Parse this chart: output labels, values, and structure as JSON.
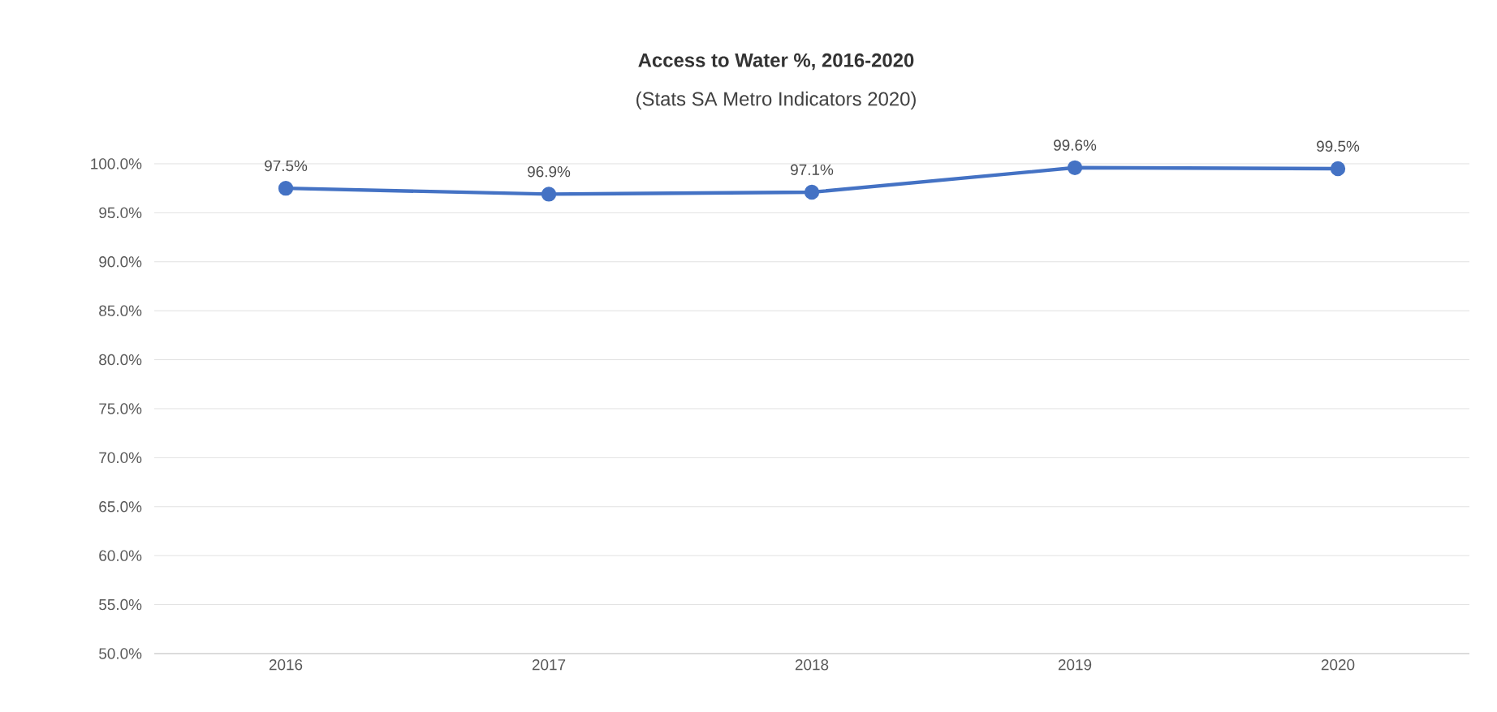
{
  "chart_data": {
    "type": "line",
    "title": "Access to Water %, 2016-2020",
    "subtitle": "(Stats SA Metro Indicators 2020)",
    "categories": [
      "2016",
      "2017",
      "2018",
      "2019",
      "2020"
    ],
    "values": [
      97.5,
      96.9,
      97.1,
      99.6,
      99.5
    ],
    "value_labels": [
      "97.5%",
      "96.9%",
      "97.1%",
      "99.6%",
      "99.5%"
    ],
    "color": "#4472c4",
    "marker": "circle",
    "line_style": "solid",
    "grid": "y",
    "ylim": [
      50,
      100
    ],
    "yticks": [
      {
        "value": 50,
        "label": "50.0%"
      },
      {
        "value": 55,
        "label": "55.0%"
      },
      {
        "value": 60,
        "label": "60.0%"
      },
      {
        "value": 65,
        "label": "65.0%"
      },
      {
        "value": 70,
        "label": "70.0%"
      },
      {
        "value": 75,
        "label": "75.0%"
      },
      {
        "value": 80,
        "label": "80.0%"
      },
      {
        "value": 85,
        "label": "85.0%"
      },
      {
        "value": 90,
        "label": "90.0%"
      },
      {
        "value": 95,
        "label": "95.0%"
      },
      {
        "value": 100,
        "label": "100.0%"
      }
    ]
  }
}
